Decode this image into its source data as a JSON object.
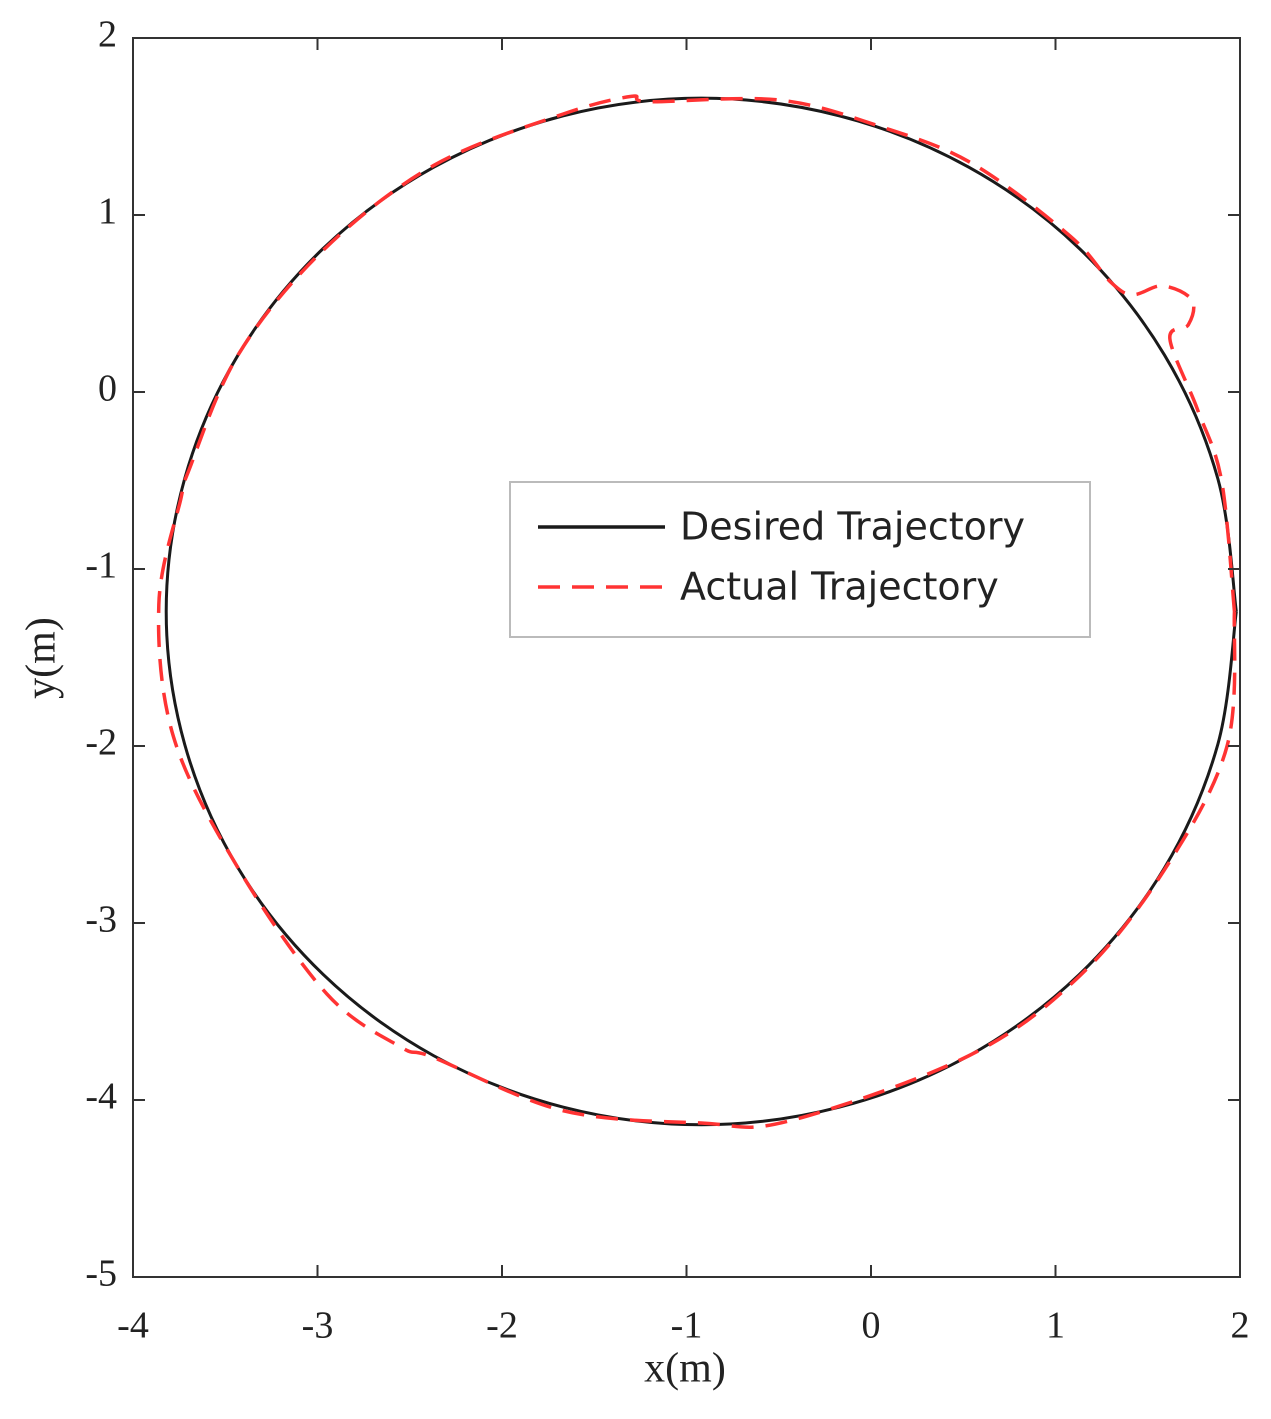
{
  "chart_data": {
    "type": "line",
    "xlabel": "x(m)",
    "ylabel": "y(m)",
    "xlim": [
      -4,
      2
    ],
    "xticks": [
      -4,
      -3,
      -2,
      -1,
      0,
      1,
      2
    ],
    "ylim": [
      -5,
      2
    ],
    "yticks": [
      -5,
      -4,
      -3,
      -2,
      -1,
      0,
      1,
      2
    ],
    "series": [
      {
        "name": "Desired Trajectory",
        "color": "#1a1a1a",
        "dashed": false,
        "x": [
          1.98,
          1.88,
          1.59,
          1.13,
          0.53,
          -0.17,
          -0.92,
          -1.67,
          -2.37,
          -2.97,
          -3.43,
          -3.72,
          -3.82,
          -3.72,
          -3.43,
          -2.97,
          -2.37,
          -1.67,
          -0.92,
          -0.17,
          0.53,
          1.13,
          1.59,
          1.88,
          1.98
        ],
        "values": [
          -1.24,
          -0.49,
          0.21,
          0.81,
          1.27,
          1.56,
          1.66,
          1.56,
          1.27,
          0.81,
          0.21,
          -0.49,
          -1.24,
          -1.99,
          -2.69,
          -3.29,
          -3.75,
          -4.04,
          -4.14,
          -4.04,
          -3.75,
          -3.29,
          -2.69,
          -1.99,
          -1.24
        ]
      },
      {
        "name": "Actual Trajectory",
        "color": "#ff3333",
        "dashed": true,
        "x": [
          1.97,
          1.9,
          1.77,
          1.62,
          1.72,
          1.74,
          1.58,
          1.42,
          1.3,
          1.08,
          0.55,
          0.05,
          -0.5,
          -1.2,
          -1.3,
          -1.67,
          -2.37,
          -2.97,
          -3.43,
          -3.7,
          -3.74,
          -3.86,
          -3.78,
          -3.43,
          -2.95,
          -2.55,
          -2.37,
          -1.67,
          -0.92,
          -0.45,
          0.53,
          1.13,
          1.59,
          1.93,
          1.97
        ],
        "values": [
          -1.24,
          -0.5,
          -0.1,
          0.3,
          0.38,
          0.52,
          0.6,
          0.55,
          0.62,
          0.88,
          1.29,
          1.5,
          1.65,
          1.64,
          1.67,
          1.57,
          1.28,
          0.8,
          0.21,
          -0.45,
          -0.6,
          -1.2,
          -1.95,
          -2.69,
          -3.4,
          -3.7,
          -3.76,
          -4.06,
          -4.13,
          -4.12,
          -3.75,
          -3.3,
          -2.7,
          -2.0,
          -1.24
        ]
      }
    ]
  }
}
